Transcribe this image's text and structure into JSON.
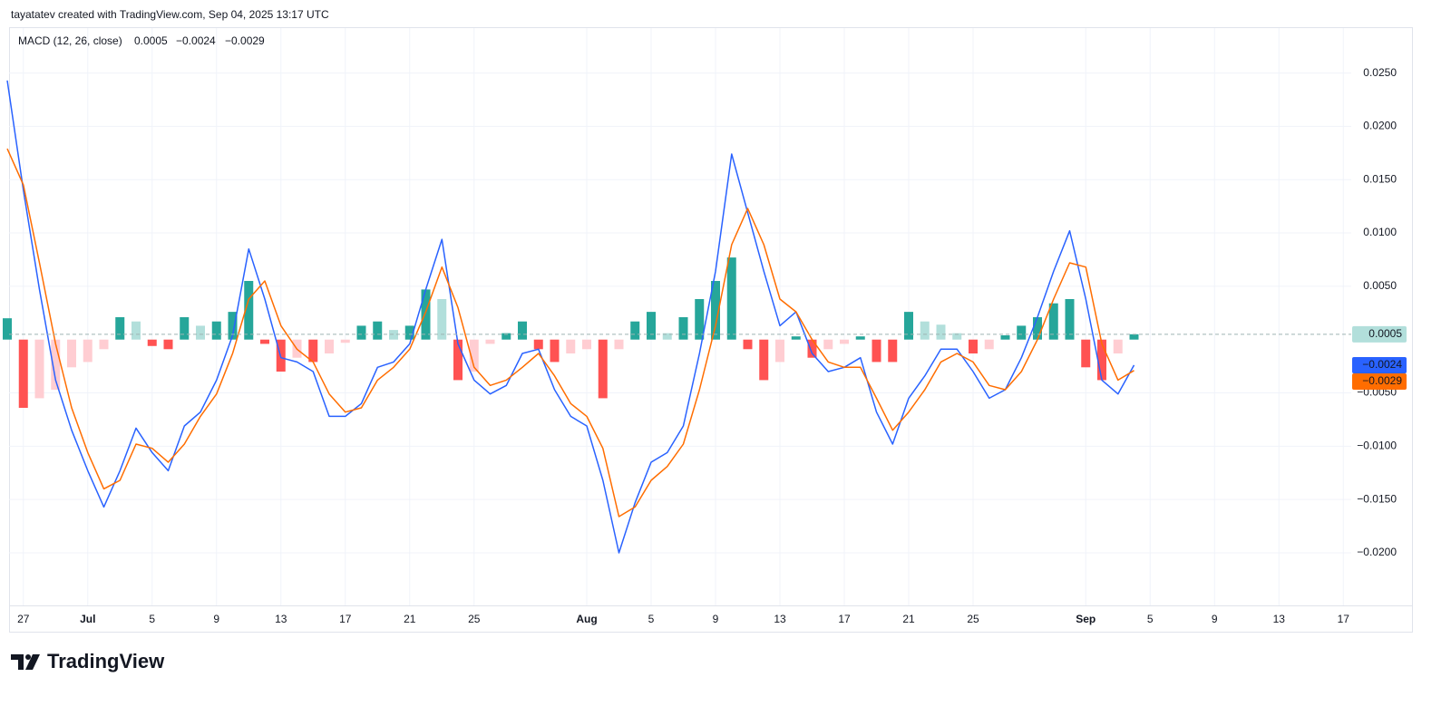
{
  "header_text": "tayatatev created with TradingView.com, Sep 04, 2025 13:17 UTC",
  "brand": "TradingView",
  "chart_data": {
    "type": "macd",
    "title": "MACD (12, 26, close)",
    "categories": [
      null,
      "27",
      null,
      null,
      null,
      "Jul",
      null,
      null,
      null,
      "5",
      null,
      null,
      null,
      "9",
      null,
      null,
      null,
      "13",
      null,
      null,
      null,
      "17",
      null,
      null,
      null,
      "21",
      null,
      null,
      null,
      "25",
      null,
      null,
      null,
      null,
      null,
      null,
      "Aug",
      null,
      null,
      null,
      "5",
      null,
      null,
      null,
      "9",
      null,
      null,
      null,
      "13",
      null,
      null,
      null,
      "17",
      null,
      null,
      null,
      "21",
      null,
      null,
      null,
      "25",
      null,
      null,
      null,
      null,
      null,
      null,
      "Sep",
      null,
      null,
      null,
      "5",
      null,
      null,
      null,
      "9",
      null,
      null,
      null,
      "13",
      null,
      null,
      null,
      "17"
    ],
    "series": [
      {
        "kind": "histogram",
        "colors": [
          "#26a69a",
          "#b2dfdb",
          "#ffcdd2",
          "#ff5252"
        ],
        "last_label": "0.0005",
        "values": [
          0.002,
          -0.0064,
          -0.0055,
          -0.0047,
          -0.0026,
          -0.0021,
          -0.0009,
          0.0021,
          0.0017,
          -0.0006,
          -0.0009,
          0.0021,
          0.0013,
          0.0017,
          0.0026,
          0.0055,
          -0.0004,
          -0.003,
          -0.0017,
          -0.0021,
          -0.0013,
          -0.0003,
          0.0013,
          0.0017,
          0.0009,
          0.0013,
          0.0047,
          0.0038,
          -0.0038,
          -0.003,
          -0.0004,
          0.0006,
          0.0017,
          -0.0009,
          -0.0021,
          -0.0013,
          -0.0009,
          -0.0055,
          -0.0009,
          0.0017,
          0.0026,
          0.0006,
          0.0021,
          0.0038,
          0.0055,
          0.0077,
          -0.0009,
          -0.0038,
          -0.0021,
          0.0003,
          -0.0017,
          -0.0009,
          -0.0004,
          0.0003,
          -0.0021,
          -0.0021,
          0.0026,
          0.0017,
          0.0014,
          0.0006,
          -0.0013,
          -0.0009,
          0.0004,
          0.0013,
          0.0021,
          0.0034,
          0.0038,
          -0.0026,
          -0.0038,
          -0.0013,
          0.0005,
          null,
          null,
          null,
          null,
          null,
          null,
          null,
          null,
          null,
          null,
          null,
          null,
          null
        ]
      },
      {
        "kind": "line",
        "color": "#2962ff",
        "last_label": "−0.0024",
        "values": [
          0.0243,
          0.014,
          0.0047,
          -0.0038,
          -0.0085,
          -0.0123,
          -0.0157,
          -0.0123,
          -0.0083,
          -0.0106,
          -0.0123,
          -0.0081,
          -0.0068,
          -0.0038,
          0.0004,
          0.0085,
          0.0038,
          -0.0017,
          -0.0021,
          -0.003,
          -0.0072,
          -0.0072,
          -0.006,
          -0.0026,
          -0.0021,
          -0.0004,
          0.0047,
          0.0094,
          -0.0004,
          -0.0038,
          -0.0051,
          -0.0043,
          -0.0013,
          -0.0009,
          -0.0047,
          -0.0072,
          -0.0081,
          -0.0132,
          -0.02,
          -0.0153,
          -0.0115,
          -0.0106,
          -0.0081,
          -0.0013,
          0.0064,
          0.0174,
          0.0119,
          0.0064,
          0.0013,
          0.0026,
          -0.0013,
          -0.003,
          -0.0026,
          -0.0017,
          -0.0068,
          -0.0098,
          -0.0055,
          -0.0034,
          -0.0009,
          -0.0009,
          -0.003,
          -0.0055,
          -0.0047,
          -0.0017,
          0.0021,
          0.0064,
          0.0102,
          0.0038,
          -0.0038,
          -0.0051,
          -0.0024,
          null,
          null,
          null,
          null,
          null,
          null,
          null,
          null,
          null,
          null,
          null,
          null,
          null
        ]
      },
      {
        "kind": "line",
        "color": "#ff6d00",
        "last_label": "−0.0029",
        "values": [
          0.0179,
          0.0145,
          0.0072,
          -0.0004,
          -0.0064,
          -0.0106,
          -0.014,
          -0.0132,
          -0.0098,
          -0.0102,
          -0.0115,
          -0.0098,
          -0.0072,
          -0.0051,
          -0.0013,
          0.0038,
          0.0055,
          0.0013,
          -0.0009,
          -0.0021,
          -0.0051,
          -0.0068,
          -0.0064,
          -0.0038,
          -0.0026,
          -0.0009,
          0.0026,
          0.0068,
          0.003,
          -0.0026,
          -0.0043,
          -0.0038,
          -0.0026,
          -0.0013,
          -0.0034,
          -0.006,
          -0.0072,
          -0.0102,
          -0.0166,
          -0.0157,
          -0.0132,
          -0.0119,
          -0.0098,
          -0.0047,
          0.0013,
          0.0089,
          0.0123,
          0.0089,
          0.0038,
          0.0026,
          0,
          -0.0021,
          -0.0026,
          -0.0026,
          -0.0055,
          -0.0085,
          -0.0068,
          -0.0047,
          -0.0021,
          -0.0013,
          -0.0021,
          -0.0043,
          -0.0047,
          -0.003,
          0,
          0.0038,
          0.0072,
          0.0068,
          -0.0004,
          -0.0038,
          -0.0029,
          null,
          null,
          null,
          null,
          null,
          null,
          null,
          null,
          null,
          null,
          null,
          null,
          null
        ]
      }
    ],
    "ylim": [
      -0.0251,
      0.0293
    ],
    "yticks": [
      {
        "value": 0.025,
        "label": "0.0250"
      },
      {
        "value": 0.02,
        "label": "0.0200"
      },
      {
        "value": 0.015,
        "label": "0.0150"
      },
      {
        "value": 0.01,
        "label": "0.0100"
      },
      {
        "value": 0.005,
        "label": "0.0050"
      },
      {
        "value": -0.005,
        "label": "−0.0050"
      },
      {
        "value": -0.01,
        "label": "−0.0100"
      },
      {
        "value": -0.015,
        "label": "−0.0150"
      },
      {
        "value": -0.02,
        "label": "−0.0200"
      }
    ],
    "grid": true
  }
}
